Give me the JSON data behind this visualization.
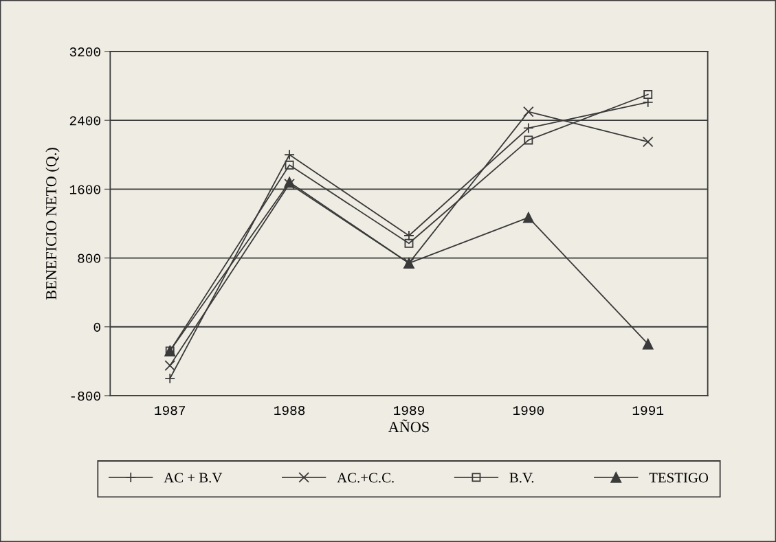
{
  "chart_data": {
    "type": "line",
    "xlabel": "AÑOS",
    "ylabel": "BENEFICIO NETO (Q.)",
    "categories": [
      "1987",
      "1988",
      "1989",
      "1990",
      "1991"
    ],
    "series": [
      {
        "name": "AC + B.V",
        "color": "#3a3a3a",
        "marker": "cross",
        "values": [
          -600,
          2000,
          1060,
          2310,
          2610
        ]
      },
      {
        "name": "AC.+C.C.",
        "color": "#3a3a3a",
        "marker": "cross",
        "values": [
          -450,
          1660,
          740,
          2500,
          2150
        ]
      },
      {
        "name": "B.V.",
        "color": "#3a3a3a",
        "marker": "square",
        "values": [
          -280,
          1880,
          970,
          2170,
          2700
        ]
      },
      {
        "name": "TESTIGO",
        "color": "#3a3a3a",
        "marker": "triangle",
        "values": [
          -280,
          1680,
          740,
          1270,
          -200
        ]
      }
    ],
    "ylim": [
      -800,
      3200
    ],
    "yticks": [
      -800,
      0,
      800,
      1600,
      2400,
      3200
    ],
    "grid": "y",
    "legend": "bottom",
    "line_style": "solid"
  }
}
